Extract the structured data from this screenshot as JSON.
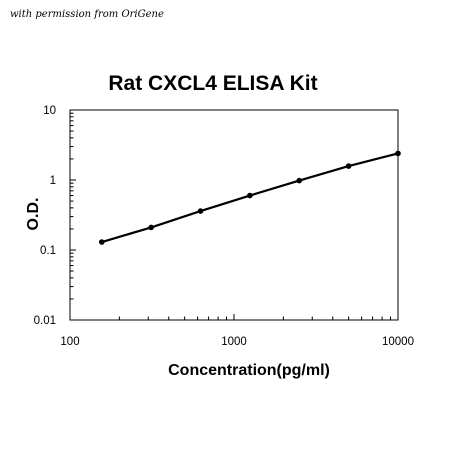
{
  "permission_note": "with permission from OriGene",
  "chart_data": {
    "type": "line",
    "title": "Rat CXCL4 ELISA Kit",
    "xlabel": "Concentration(pg/ml)",
    "ylabel": "O.D.",
    "x_scale": "log",
    "y_scale": "log",
    "xlim": [
      100,
      10000
    ],
    "ylim": [
      0.01,
      10
    ],
    "x_ticks": [
      "100",
      "1000",
      "10000"
    ],
    "y_ticks": [
      "0.01",
      "0.1",
      "1",
      "10"
    ],
    "grid": false,
    "legend": "none",
    "series": [
      {
        "color": "#000000",
        "points": [
          {
            "x": 156.25,
            "y": 0.13
          },
          {
            "x": 312.5,
            "y": 0.21
          },
          {
            "x": 625,
            "y": 0.36
          },
          {
            "x": 1250,
            "y": 0.6
          },
          {
            "x": 2500,
            "y": 0.98
          },
          {
            "x": 5000,
            "y": 1.58
          },
          {
            "x": 10000,
            "y": 2.4
          }
        ]
      }
    ]
  }
}
